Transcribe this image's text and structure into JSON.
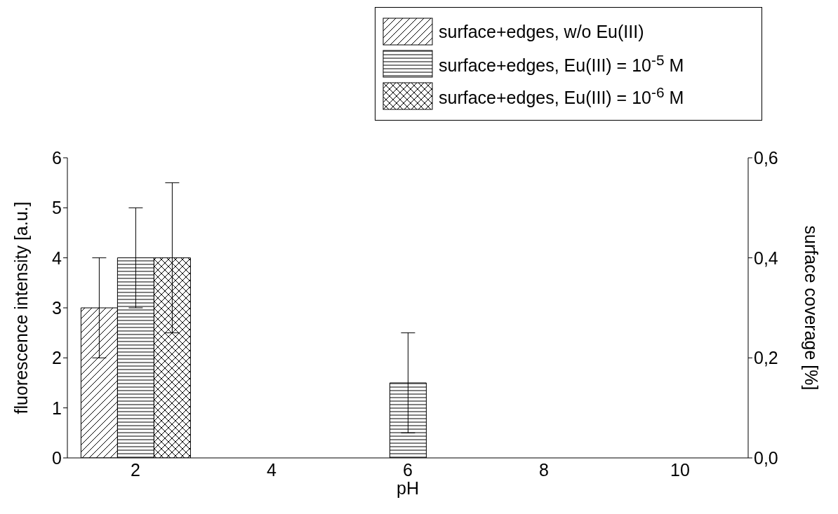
{
  "chart_data": {
    "type": "bar",
    "xlabel": "pH",
    "ylabel": "fluorescence intensity [a.u.]",
    "y2label": "surface coverage [%]",
    "categories": [
      "2",
      "4",
      "6",
      "8",
      "10"
    ],
    "series": [
      {
        "name": "surface+edges, w/o Eu(III)",
        "color": "#000000",
        "values": [
          3,
          0,
          0,
          0,
          0
        ],
        "errors": [
          [
            2,
            4
          ],
          null,
          null,
          null,
          null
        ]
      },
      {
        "name": "surface+edges, Eu(III) = 10$^{-5}$ M",
        "color": "#000000",
        "values": [
          4,
          0,
          1.5,
          0,
          0
        ],
        "errors": [
          [
            3,
            5
          ],
          null,
          [
            0.5,
            2.5
          ],
          null,
          null
        ]
      },
      {
        "name": "surface+edges, Eu(III) = 10$^{-6}$ M",
        "color": "#000000",
        "values": [
          4,
          0,
          0,
          0,
          0
        ],
        "errors": [
          [
            2.5,
            5.5
          ],
          null,
          null,
          null,
          null
        ]
      }
    ],
    "ylim": [
      0,
      6
    ],
    "yticks": [
      0,
      1,
      2,
      3,
      4,
      5,
      6
    ],
    "y2lim": [
      0,
      0.6
    ],
    "y2ticks": [
      {
        "value": 0,
        "label": "0,0"
      },
      {
        "value": 0.2,
        "label": "0,2"
      },
      {
        "value": 0.4,
        "label": "0,4"
      },
      {
        "value": 0.6,
        "label": "0,6"
      }
    ],
    "grid": false,
    "legend": "top right"
  }
}
